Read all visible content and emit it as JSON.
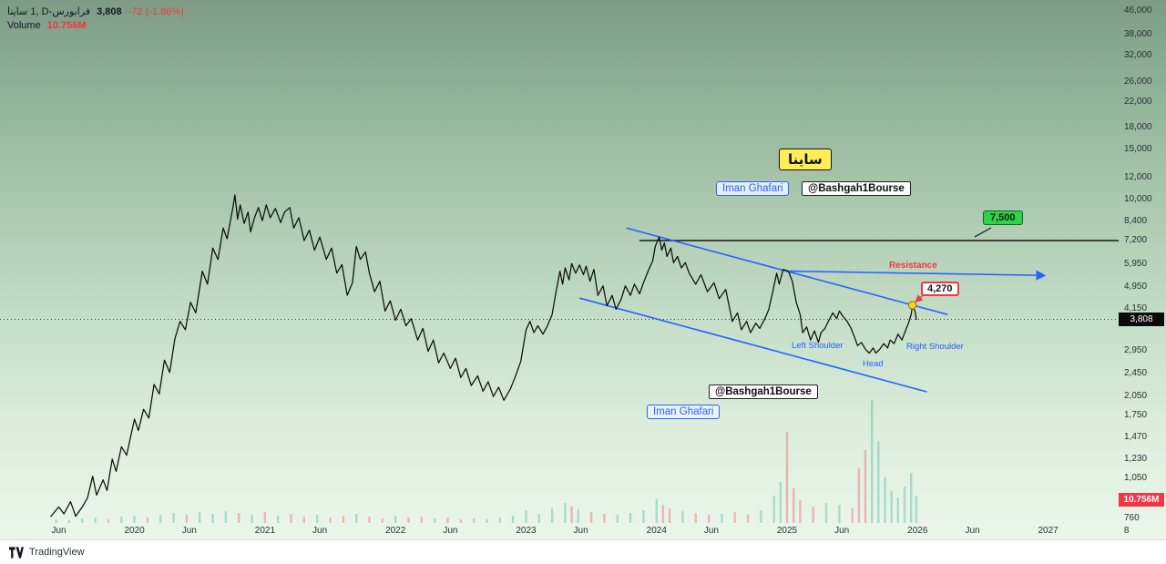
{
  "colors": {
    "accent_blue": "#2962ff",
    "down_red": "#f23645",
    "up_green": "#26a69a",
    "label_green": "#2fd24a",
    "label_yellow": "#ffee55",
    "bg_top": "#7e9c85",
    "bg_bottom": "#eaf6ea"
  },
  "legend": {
    "symbol": "ساينا‎ 1, D‎-فرابورس",
    "price": "3,808",
    "change": "-72 (-1.86%)",
    "volume_label": "Volume",
    "volume_value": "10.756M"
  },
  "badges": {
    "price": "3,808",
    "volume": "10.756M"
  },
  "annotations": {
    "watermark": "ساينا",
    "author": "Iman Ghafari",
    "channel": "@Bashgah1Bourse",
    "target": "7,500",
    "breakout": "4,270",
    "resistance": "Resistance",
    "left_shoulder": "Left Shoulder",
    "head": "Head",
    "right_shoulder": "Right Shoulder"
  },
  "axis": {
    "y_ticks": [
      {
        "p": 46000,
        "label": "46,000"
      },
      {
        "p": 38000,
        "label": "38,000"
      },
      {
        "p": 32000,
        "label": "32,000"
      },
      {
        "p": 26000,
        "label": "26,000"
      },
      {
        "p": 22000,
        "label": "22,000"
      },
      {
        "p": 18000,
        "label": "18,000"
      },
      {
        "p": 15000,
        "label": "15,000"
      },
      {
        "p": 12000,
        "label": "12,000"
      },
      {
        "p": 10000,
        "label": "10,000"
      },
      {
        "p": 8400,
        "label": "8,400"
      },
      {
        "p": 7200,
        "label": "7,200"
      },
      {
        "p": 5950,
        "label": "5,950"
      },
      {
        "p": 4950,
        "label": "4,950"
      },
      {
        "p": 4150,
        "label": "4,150"
      },
      {
        "p": 2950,
        "label": "2,950"
      },
      {
        "p": 2450,
        "label": "2,450"
      },
      {
        "p": 2050,
        "label": "2,050"
      },
      {
        "p": 1750,
        "label": "1,750"
      },
      {
        "p": 1470,
        "label": "1,470"
      },
      {
        "p": 1230,
        "label": "1,230"
      },
      {
        "p": 1050,
        "label": "1,050"
      },
      {
        "p": 760,
        "label": "760"
      }
    ],
    "x_ticks": [
      {
        "t": 2019.42,
        "label": "Jun"
      },
      {
        "t": 2020.0,
        "label": "2020"
      },
      {
        "t": 2020.42,
        "label": "Jun"
      },
      {
        "t": 2021.0,
        "label": "2021"
      },
      {
        "t": 2021.42,
        "label": "Jun"
      },
      {
        "t": 2022.0,
        "label": "2022"
      },
      {
        "t": 2022.42,
        "label": "Jun"
      },
      {
        "t": 2023.0,
        "label": "2023"
      },
      {
        "t": 2023.42,
        "label": "Jun"
      },
      {
        "t": 2024.0,
        "label": "2024"
      },
      {
        "t": 2024.42,
        "label": "Jun"
      },
      {
        "t": 2025.0,
        "label": "2025"
      },
      {
        "t": 2025.42,
        "label": "Jun"
      },
      {
        "t": 2026.0,
        "label": "2026"
      },
      {
        "t": 2026.42,
        "label": "Jun"
      },
      {
        "t": 2027.0,
        "label": "2027"
      },
      {
        "t": 2027.6,
        "label": "8"
      }
    ]
  },
  "chart_data": {
    "type": "line",
    "symbol": "ساينا",
    "x_range": {
      "min": 2018.97,
      "max": 2027.54
    },
    "y_range_log": {
      "min": 643,
      "max": 50300
    },
    "current_price": 3808,
    "resistance_level": 7200,
    "target_price": 7500,
    "breakout_price": 4270,
    "marker": {
      "t": 2025.96,
      "p": 4270
    },
    "hline": {
      "p": 7200,
      "t1": 2023.87,
      "t2": 2027.54
    },
    "trendlines": [
      {
        "name": "channel-upper-trendline",
        "points": [
          [
            2023.77,
            7960
          ],
          [
            2026.23,
            3960
          ]
        ],
        "arrow": false
      },
      {
        "name": "channel-lower-trendline",
        "points": [
          [
            2023.41,
            4520
          ],
          [
            2026.07,
            2120
          ]
        ],
        "arrow": false
      },
      {
        "name": "resistance-arrow-line",
        "points": [
          [
            2025.02,
            5620
          ],
          [
            2026.97,
            5430
          ]
        ],
        "arrow": true
      }
    ],
    "series": [
      [
        2019.36,
        775
      ],
      [
        2019.42,
        836
      ],
      [
        2019.46,
        790
      ],
      [
        2019.51,
        872
      ],
      [
        2019.55,
        775
      ],
      [
        2019.6,
        836
      ],
      [
        2019.64,
        898
      ],
      [
        2019.68,
        1070
      ],
      [
        2019.71,
        920
      ],
      [
        2019.76,
        1040
      ],
      [
        2019.79,
        955
      ],
      [
        2019.83,
        1230
      ],
      [
        2019.86,
        1115
      ],
      [
        2019.9,
        1360
      ],
      [
        2019.94,
        1270
      ],
      [
        2020.0,
        1700
      ],
      [
        2020.03,
        1550
      ],
      [
        2020.07,
        1840
      ],
      [
        2020.11,
        1715
      ],
      [
        2020.15,
        2250
      ],
      [
        2020.19,
        2085
      ],
      [
        2020.23,
        2740
      ],
      [
        2020.27,
        2480
      ],
      [
        2020.31,
        3260
      ],
      [
        2020.35,
        3745
      ],
      [
        2020.39,
        3500
      ],
      [
        2020.43,
        4370
      ],
      [
        2020.47,
        4010
      ],
      [
        2020.52,
        5620
      ],
      [
        2020.56,
        5060
      ],
      [
        2020.6,
        6770
      ],
      [
        2020.64,
        6180
      ],
      [
        2020.68,
        7960
      ],
      [
        2020.71,
        7300
      ],
      [
        2020.75,
        9200
      ],
      [
        2020.77,
        10400
      ],
      [
        2020.79,
        8560
      ],
      [
        2020.81,
        9600
      ],
      [
        2020.84,
        8270
      ],
      [
        2020.87,
        9060
      ],
      [
        2020.89,
        7720
      ],
      [
        2020.92,
        8660
      ],
      [
        2020.95,
        9400
      ],
      [
        2020.98,
        8450
      ],
      [
        2021.01,
        9600
      ],
      [
        2021.04,
        8660
      ],
      [
        2021.08,
        9330
      ],
      [
        2021.12,
        8320
      ],
      [
        2021.15,
        9060
      ],
      [
        2021.19,
        9400
      ],
      [
        2021.22,
        7960
      ],
      [
        2021.26,
        8660
      ],
      [
        2021.3,
        7200
      ],
      [
        2021.34,
        7830
      ],
      [
        2021.38,
        6660
      ],
      [
        2021.42,
        7410
      ],
      [
        2021.47,
        6180
      ],
      [
        2021.51,
        6770
      ],
      [
        2021.55,
        5530
      ],
      [
        2021.59,
        5930
      ],
      [
        2021.63,
        4620
      ],
      [
        2021.67,
        5120
      ],
      [
        2021.7,
        6860
      ],
      [
        2021.73,
        6180
      ],
      [
        2021.77,
        6560
      ],
      [
        2021.8,
        5530
      ],
      [
        2021.84,
        4760
      ],
      [
        2021.88,
        5180
      ],
      [
        2021.92,
        4070
      ],
      [
        2021.96,
        4420
      ],
      [
        2022.0,
        3780
      ],
      [
        2022.04,
        4130
      ],
      [
        2022.08,
        3615
      ],
      [
        2022.12,
        3830
      ],
      [
        2022.17,
        3220
      ],
      [
        2022.21,
        3540
      ],
      [
        2022.25,
        2940
      ],
      [
        2022.29,
        3220
      ],
      [
        2022.33,
        2680
      ],
      [
        2022.37,
        2900
      ],
      [
        2022.42,
        2560
      ],
      [
        2022.46,
        2780
      ],
      [
        2022.5,
        2380
      ],
      [
        2022.54,
        2560
      ],
      [
        2022.58,
        2230
      ],
      [
        2022.63,
        2410
      ],
      [
        2022.67,
        2130
      ],
      [
        2022.71,
        2300
      ],
      [
        2022.75,
        2040
      ],
      [
        2022.79,
        2200
      ],
      [
        2022.83,
        1980
      ],
      [
        2022.88,
        2170
      ],
      [
        2022.92,
        2410
      ],
      [
        2022.96,
        2710
      ],
      [
        2023.0,
        3500
      ],
      [
        2023.03,
        3745
      ],
      [
        2023.06,
        3420
      ],
      [
        2023.09,
        3615
      ],
      [
        2023.13,
        3380
      ],
      [
        2023.16,
        3580
      ],
      [
        2023.2,
        3960
      ],
      [
        2023.23,
        4760
      ],
      [
        2023.26,
        5620
      ],
      [
        2023.28,
        5060
      ],
      [
        2023.3,
        5770
      ],
      [
        2023.33,
        5240
      ],
      [
        2023.35,
        5980
      ],
      [
        2023.38,
        5530
      ],
      [
        2023.41,
        5910
      ],
      [
        2023.44,
        5460
      ],
      [
        2023.46,
        5850
      ],
      [
        2023.49,
        5180
      ],
      [
        2023.52,
        5700
      ],
      [
        2023.55,
        4620
      ],
      [
        2023.59,
        4990
      ],
      [
        2023.62,
        4250
      ],
      [
        2023.66,
        4620
      ],
      [
        2023.69,
        4130
      ],
      [
        2023.73,
        4500
      ],
      [
        2023.76,
        4990
      ],
      [
        2023.8,
        4620
      ],
      [
        2023.83,
        5060
      ],
      [
        2023.87,
        4680
      ],
      [
        2023.9,
        5120
      ],
      [
        2023.94,
        5700
      ],
      [
        2023.97,
        6100
      ],
      [
        2023.99,
        6860
      ],
      [
        2024.02,
        7410
      ],
      [
        2024.04,
        6660
      ],
      [
        2024.06,
        7060
      ],
      [
        2024.08,
        6330
      ],
      [
        2024.11,
        6770
      ],
      [
        2024.13,
        6020
      ],
      [
        2024.16,
        6330
      ],
      [
        2024.19,
        5770
      ],
      [
        2024.22,
        6020
      ],
      [
        2024.25,
        5530
      ],
      [
        2024.3,
        5060
      ],
      [
        2024.34,
        5460
      ],
      [
        2024.39,
        4760
      ],
      [
        2024.44,
        5120
      ],
      [
        2024.48,
        4500
      ],
      [
        2024.53,
        4850
      ],
      [
        2024.58,
        3745
      ],
      [
        2024.62,
        4010
      ],
      [
        2024.65,
        3500
      ],
      [
        2024.69,
        3745
      ],
      [
        2024.72,
        3420
      ],
      [
        2024.76,
        3690
      ],
      [
        2024.79,
        3540
      ],
      [
        2024.83,
        3830
      ],
      [
        2024.86,
        4130
      ],
      [
        2024.89,
        4760
      ],
      [
        2024.92,
        5530
      ],
      [
        2024.94,
        5060
      ],
      [
        2024.97,
        5700
      ],
      [
        2025.01,
        5620
      ],
      [
        2025.04,
        5180
      ],
      [
        2025.07,
        4370
      ],
      [
        2025.1,
        3960
      ],
      [
        2025.12,
        3420
      ],
      [
        2025.15,
        3580
      ],
      [
        2025.18,
        3220
      ],
      [
        2025.21,
        3470
      ],
      [
        2025.24,
        3160
      ],
      [
        2025.26,
        3420
      ],
      [
        2025.29,
        3540
      ],
      [
        2025.32,
        3780
      ],
      [
        2025.35,
        4010
      ],
      [
        2025.38,
        3830
      ],
      [
        2025.4,
        4070
      ],
      [
        2025.43,
        3890
      ],
      [
        2025.46,
        3745
      ],
      [
        2025.49,
        3540
      ],
      [
        2025.52,
        3260
      ],
      [
        2025.54,
        3080
      ],
      [
        2025.57,
        3160
      ],
      [
        2025.6,
        2990
      ],
      [
        2025.63,
        2900
      ],
      [
        2025.66,
        3020
      ],
      [
        2025.68,
        2900
      ],
      [
        2025.71,
        2990
      ],
      [
        2025.74,
        3130
      ],
      [
        2025.77,
        3020
      ],
      [
        2025.79,
        3220
      ],
      [
        2025.82,
        3130
      ],
      [
        2025.85,
        3380
      ],
      [
        2025.88,
        3220
      ],
      [
        2025.91,
        3500
      ],
      [
        2025.93,
        3690
      ],
      [
        2025.95,
        3960
      ],
      [
        2025.96,
        4230
      ],
      [
        2025.98,
        4070
      ],
      [
        2025.99,
        3808
      ]
    ],
    "volume_bars": [
      [
        2019.4,
        4,
        "g"
      ],
      [
        2019.5,
        3,
        "r"
      ],
      [
        2019.6,
        5,
        "g"
      ],
      [
        2019.7,
        6,
        "g"
      ],
      [
        2019.8,
        4,
        "r"
      ],
      [
        2019.9,
        7,
        "g"
      ],
      [
        2020.0,
        8,
        "g"
      ],
      [
        2020.1,
        6,
        "r"
      ],
      [
        2020.2,
        9,
        "g"
      ],
      [
        2020.3,
        11,
        "g"
      ],
      [
        2020.4,
        9,
        "r"
      ],
      [
        2020.5,
        12,
        "g"
      ],
      [
        2020.6,
        10,
        "g"
      ],
      [
        2020.7,
        13,
        "g"
      ],
      [
        2020.8,
        11,
        "r"
      ],
      [
        2020.9,
        9,
        "g"
      ],
      [
        2021.0,
        12,
        "r"
      ],
      [
        2021.1,
        8,
        "g"
      ],
      [
        2021.2,
        10,
        "r"
      ],
      [
        2021.3,
        7,
        "r"
      ],
      [
        2021.4,
        9,
        "g"
      ],
      [
        2021.5,
        6,
        "r"
      ],
      [
        2021.6,
        8,
        "r"
      ],
      [
        2021.7,
        10,
        "g"
      ],
      [
        2021.8,
        7,
        "r"
      ],
      [
        2021.9,
        5,
        "r"
      ],
      [
        2022.0,
        8,
        "g"
      ],
      [
        2022.1,
        6,
        "r"
      ],
      [
        2022.2,
        7,
        "r"
      ],
      [
        2022.3,
        5,
        "g"
      ],
      [
        2022.4,
        6,
        "r"
      ],
      [
        2022.5,
        4,
        "r"
      ],
      [
        2022.6,
        5,
        "g"
      ],
      [
        2022.7,
        4,
        "r"
      ],
      [
        2022.8,
        6,
        "g"
      ],
      [
        2022.9,
        8,
        "g"
      ],
      [
        2023.0,
        14,
        "g"
      ],
      [
        2023.1,
        10,
        "g"
      ],
      [
        2023.2,
        16,
        "g"
      ],
      [
        2023.3,
        22,
        "g"
      ],
      [
        2023.35,
        18,
        "r"
      ],
      [
        2023.4,
        15,
        "g"
      ],
      [
        2023.5,
        12,
        "r"
      ],
      [
        2023.6,
        10,
        "r"
      ],
      [
        2023.7,
        9,
        "g"
      ],
      [
        2023.8,
        11,
        "g"
      ],
      [
        2023.9,
        14,
        "g"
      ],
      [
        2024.0,
        26,
        "g"
      ],
      [
        2024.05,
        20,
        "r"
      ],
      [
        2024.1,
        16,
        "r"
      ],
      [
        2024.2,
        13,
        "g"
      ],
      [
        2024.3,
        11,
        "r"
      ],
      [
        2024.4,
        9,
        "r"
      ],
      [
        2024.5,
        10,
        "g"
      ],
      [
        2024.6,
        12,
        "r"
      ],
      [
        2024.7,
        9,
        "r"
      ],
      [
        2024.8,
        14,
        "g"
      ],
      [
        2024.9,
        30,
        "g"
      ],
      [
        2024.95,
        45,
        "g"
      ],
      [
        2025.0,
        100,
        "r"
      ],
      [
        2025.05,
        38,
        "r"
      ],
      [
        2025.1,
        25,
        "r"
      ],
      [
        2025.2,
        18,
        "r"
      ],
      [
        2025.3,
        22,
        "g"
      ],
      [
        2025.4,
        20,
        "g"
      ],
      [
        2025.5,
        16,
        "r"
      ],
      [
        2025.55,
        60,
        "r"
      ],
      [
        2025.6,
        80,
        "r"
      ],
      [
        2025.65,
        135,
        "g"
      ],
      [
        2025.7,
        90,
        "g"
      ],
      [
        2025.75,
        50,
        "g"
      ],
      [
        2025.8,
        35,
        "g"
      ],
      [
        2025.85,
        28,
        "g"
      ],
      [
        2025.9,
        40,
        "g"
      ],
      [
        2025.95,
        55,
        "g"
      ],
      [
        2025.99,
        30,
        "g"
      ]
    ]
  },
  "footer": {
    "brand": "TradingView"
  }
}
